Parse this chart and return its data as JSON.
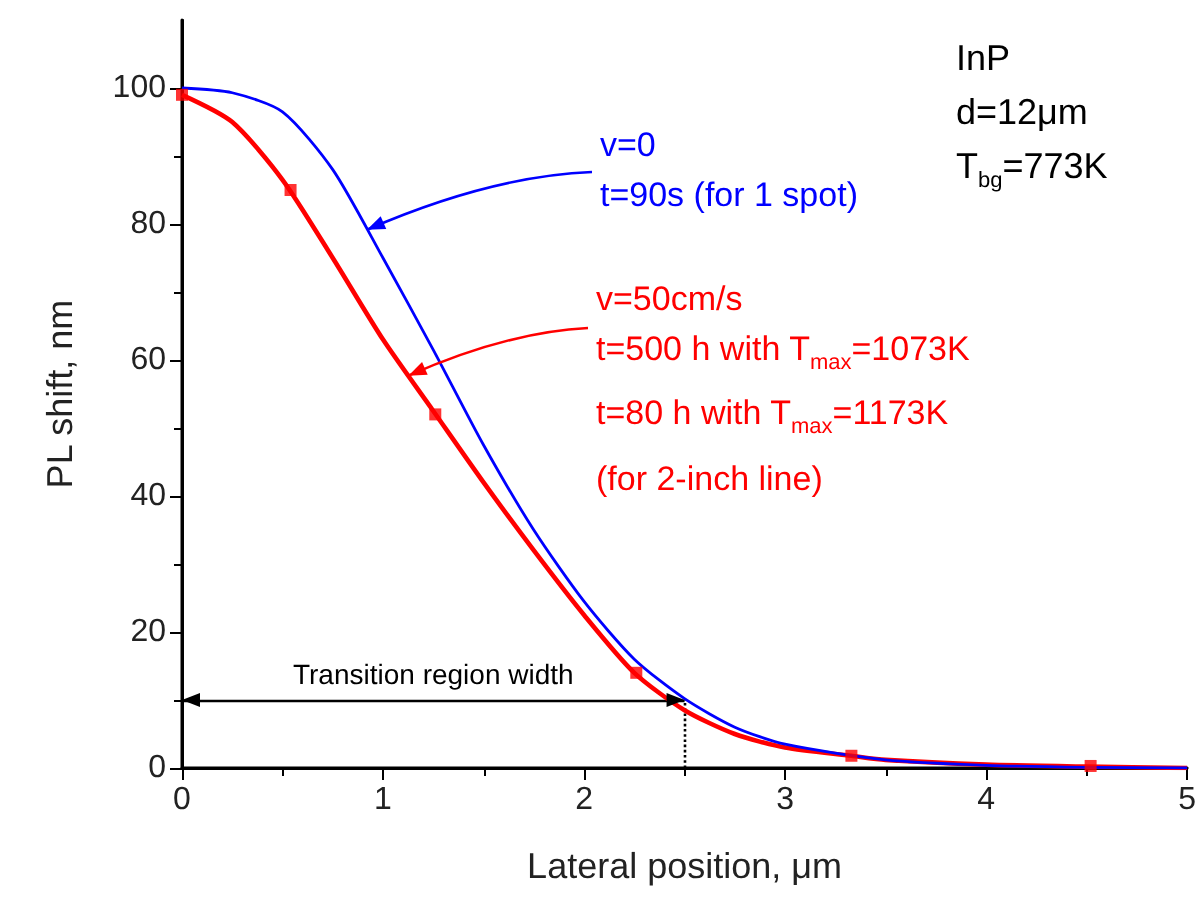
{
  "chart_data": {
    "type": "line",
    "xlabel": "Lateral position, μm",
    "ylabel": "PL shift, nm",
    "xlim": [
      0,
      5
    ],
    "xticks": [
      0,
      1,
      2,
      3,
      4,
      5
    ],
    "ylim": [
      0,
      110
    ],
    "yticks": [
      0,
      20,
      40,
      60,
      80,
      100
    ],
    "grid": false,
    "legend": false,
    "line_style": "solid",
    "series": [
      {
        "name": "v=0\nt=90s (for 1 spot)",
        "color": "#0000ff",
        "marker": "none",
        "x": [
          0,
          0.25,
          0.5,
          0.75,
          1,
          1.25,
          1.5,
          1.75,
          2,
          2.25,
          2.5,
          2.75,
          3,
          3.5,
          4,
          4.5,
          5
        ],
        "values": [
          100,
          99.3,
          96.5,
          88,
          75,
          61.5,
          47.5,
          35,
          24.5,
          16,
          10.2,
          6,
          3.5,
          1.2,
          0.4,
          0.1,
          0
        ]
      },
      {
        "name": "v=50cm/s\nt=500 h with T$_{max}$=1073K\nt=80 h   with T$_{max}$=1173K\n(for 2-inch line)",
        "color": "#ff0000",
        "marker": "none",
        "x": [
          0,
          0.25,
          0.5,
          0.75,
          1,
          1.25,
          1.5,
          1.75,
          2,
          2.25,
          2.5,
          2.75,
          3,
          3.33,
          3.5,
          4,
          4.5,
          5
        ],
        "values": [
          99,
          95,
          86.5,
          75,
          63,
          52.5,
          42,
          32,
          22.5,
          14,
          8.5,
          5,
          3,
          1.8,
          1.2,
          0.5,
          0.2,
          0
        ]
      },
      {
        "type": "scatter",
        "color": "#ff0000",
        "marker": "square",
        "x": [
          0,
          0.54,
          1.26,
          2.26,
          3.33,
          4.52
        ],
        "values": [
          99,
          85,
          52,
          14,
          1.8,
          0.3
        ]
      }
    ],
    "ref_lines": [
      {
        "axis": "x",
        "value": 2.5,
        "color": "#000000",
        "line_style": "dotted"
      },
      {
        "axis": "y",
        "value": 10,
        "label": "Transition region width",
        "color": "#000000",
        "line_style": "solid"
      }
    ],
    "annotations": [
      "InP\nd=12μm\nT$_{bg}$=773K"
    ]
  }
}
